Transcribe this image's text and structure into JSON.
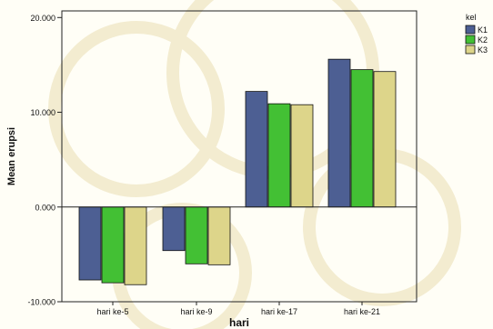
{
  "chart_data": {
    "type": "bar",
    "xlabel": "hari",
    "ylabel": "Mean erupsi",
    "categories": [
      "hari ke-5",
      "hari ke-9",
      "hari ke-17",
      "hari ke-21"
    ],
    "yticks": [
      {
        "value": -10,
        "label": "-10.000"
      },
      {
        "value": 0,
        "label": "0.000"
      },
      {
        "value": 10,
        "label": "10.000"
      },
      {
        "value": 20,
        "label": "20.000"
      }
    ],
    "ylim": [
      -10,
      20.7
    ],
    "grid": false,
    "legend": {
      "title": "kel",
      "position": "top-right"
    },
    "series": [
      {
        "name": "K1",
        "color": "#4d5f93",
        "values": [
          -7.7,
          -4.6,
          12.2,
          15.6
        ]
      },
      {
        "name": "K2",
        "color": "#43c034",
        "values": [
          -8.0,
          -6.0,
          10.9,
          14.5
        ]
      },
      {
        "name": "K3",
        "color": "#ddd58a",
        "values": [
          -8.2,
          -6.1,
          10.8,
          14.3
        ]
      }
    ]
  }
}
